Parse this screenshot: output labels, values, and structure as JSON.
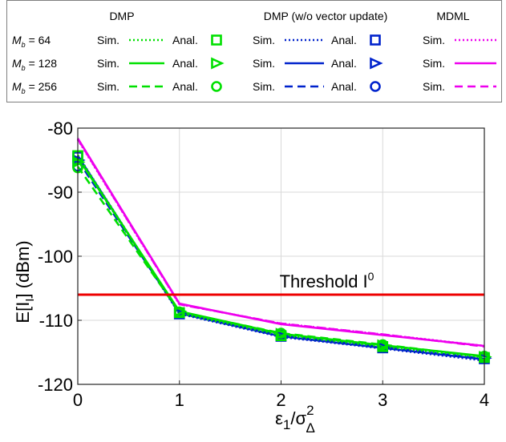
{
  "legend": {
    "headers": {
      "dmp": "DMP",
      "dmp_wo": "DMP (w/o vector update)",
      "mdml": "MDML"
    },
    "sim_label": "Sim.",
    "anal_label": "Anal.",
    "rows": [
      {
        "label_main": "M",
        "label_sub": "b",
        "label_value": " = 64",
        "dash": "dotted",
        "marker": "square"
      },
      {
        "label_main": "M",
        "label_sub": "b",
        "label_value": " = 128",
        "dash": "solid",
        "marker": "triangle"
      },
      {
        "label_main": "M",
        "label_sub": "b",
        "label_value": " = 256",
        "dash": "dashed",
        "marker": "circle"
      }
    ]
  },
  "colors": {
    "dmp": "#00e000",
    "dmp_wo": "#0022cc",
    "mdml": "#ee00ee",
    "threshold": "#ee0000",
    "grid": "#d9d9d9"
  },
  "chart_data": {
    "type": "line",
    "xlabel_main": "ε",
    "xlabel_sub1": "1",
    "xlabel_div": "/σ",
    "xlabel_sup": "2",
    "xlabel_sub2": "Δ",
    "ylabel": "E[I",
    "ylabel_sub": "I",
    "ylabel_end": "] (dBm)",
    "xlim": [
      0,
      4
    ],
    "ylim": [
      -120,
      -80
    ],
    "xticks": [
      "0",
      "1",
      "2",
      "3",
      "4"
    ],
    "yticks": [
      "-80",
      "-90",
      "-100",
      "-110",
      "-120"
    ],
    "grid": true,
    "threshold": {
      "value": -106,
      "label": "Threshold I",
      "label_sup": "0"
    },
    "x": [
      0,
      1,
      2,
      3,
      4
    ],
    "series": [
      {
        "name": "MDML Sim. M_b = 64",
        "group": "mdml",
        "dash": "dotted",
        "values": [
          -81.8,
          -107.5,
          -110.5,
          -112.2,
          -114.0
        ]
      },
      {
        "name": "MDML Sim. M_b = 128",
        "group": "mdml",
        "dash": "solid",
        "values": [
          -81.6,
          -107.4,
          -110.6,
          -112.3,
          -114.0
        ]
      },
      {
        "name": "MDML Sim. M_b = 256",
        "group": "mdml",
        "dash": "dashed",
        "values": [
          -81.7,
          -107.5,
          -110.5,
          -112.2,
          -114.1
        ]
      },
      {
        "name": "DMP (w/o vector update) Sim. M_b = 64",
        "group": "dmp_wo",
        "dash": "dotted",
        "values": [
          -84.5,
          -109.0,
          -112.6,
          -114.4,
          -116.3
        ]
      },
      {
        "name": "DMP (w/o vector update) Sim. M_b = 128",
        "group": "dmp_wo",
        "dash": "solid",
        "values": [
          -84.3,
          -108.9,
          -112.5,
          -114.3,
          -116.1
        ]
      },
      {
        "name": "DMP (w/o vector update) Sim. M_b = 256",
        "group": "dmp_wo",
        "dash": "dashed",
        "values": [
          -85.0,
          -108.8,
          -112.4,
          -114.2,
          -116.0
        ]
      },
      {
        "name": "DMP Sim. M_b = 64",
        "group": "dmp",
        "dash": "dotted",
        "values": [
          -84.2,
          -108.9,
          -112.3,
          -114.1,
          -115.8
        ]
      },
      {
        "name": "DMP Sim. M_b = 128",
        "group": "dmp",
        "dash": "solid",
        "values": [
          -84.6,
          -108.6,
          -112.1,
          -113.9,
          -115.6
        ]
      },
      {
        "name": "DMP Sim. M_b = 256",
        "group": "dmp",
        "dash": "dashed",
        "values": [
          -86.0,
          -108.7,
          -112.0,
          -113.8,
          -115.7
        ]
      }
    ],
    "analysis_markers": [
      {
        "group": "dmp_wo",
        "marker": "square",
        "values": [
          -84.5,
          -109.0,
          -112.5,
          -114.3,
          -116.0
        ]
      },
      {
        "group": "dmp_wo",
        "marker": "triangle",
        "values": [
          -85.0,
          -108.9,
          -112.4,
          -114.2,
          -115.9
        ]
      },
      {
        "group": "dmp_wo",
        "marker": "circle",
        "values": [
          -86.0,
          -108.9,
          -112.3,
          -114.1,
          -115.8
        ]
      },
      {
        "group": "dmp",
        "marker": "square",
        "values": [
          -84.3,
          -108.8,
          -112.4,
          -114.1,
          -115.8
        ]
      },
      {
        "group": "dmp",
        "marker": "triangle",
        "values": [
          -85.3,
          -108.6,
          -112.1,
          -113.9,
          -115.7
        ]
      },
      {
        "group": "dmp",
        "marker": "circle",
        "values": [
          -86.2,
          -108.7,
          -112.0,
          -113.8,
          -115.6
        ]
      }
    ]
  }
}
